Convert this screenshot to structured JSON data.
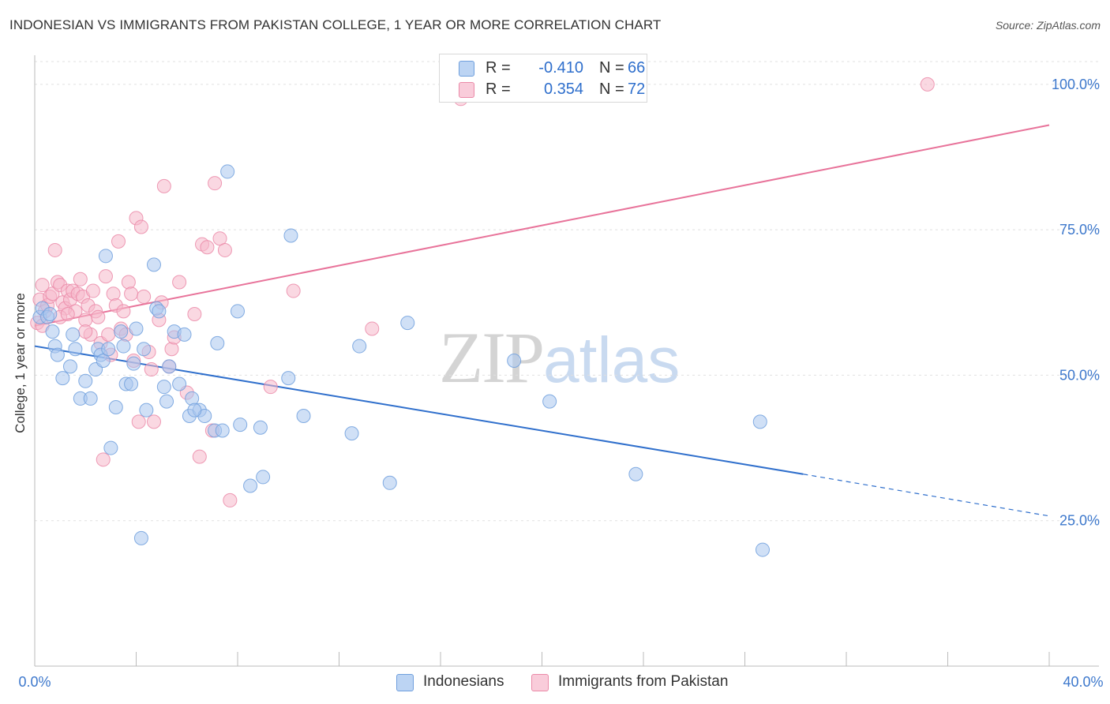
{
  "title": "INDONESIAN VS IMMIGRANTS FROM PAKISTAN COLLEGE, 1 YEAR OR MORE CORRELATION CHART",
  "source": "Source: ZipAtlas.com",
  "watermark": {
    "zip": "ZIP",
    "atlas": "atlas"
  },
  "colors": {
    "blue_fill": "#a9c6ee",
    "blue_stroke": "#6f9fdd",
    "blue_line": "#2f6fcc",
    "pink_fill": "#f5b8cb",
    "pink_stroke": "#eb8aa8",
    "pink_line": "#e8739a",
    "grid": "#e0e0e0",
    "axis_label": "#3d78cc"
  },
  "legend_top": [
    {
      "r_label": "R =",
      "r_value": "-0.410",
      "n_label": "N =",
      "n_value": "66"
    },
    {
      "r_label": "R =",
      "r_value": "0.354",
      "n_label": "N =",
      "n_value": "72"
    }
  ],
  "legend_bottom": [
    "Indonesians",
    "Immigrants from Pakistan"
  ],
  "chart_data": {
    "type": "scatter",
    "title": "INDONESIAN VS IMMIGRANTS FROM PAKISTAN COLLEGE, 1 YEAR OR MORE CORRELATION CHART",
    "xlabel": "",
    "ylabel": "College, 1 year or more",
    "xlim": [
      0,
      40
    ],
    "ylim": [
      0,
      105
    ],
    "x_tick_labels": {
      "left": "0.0%",
      "right": "40.0%"
    },
    "y_ticks": [
      {
        "value": 25,
        "label": "25.0%"
      },
      {
        "value": 50,
        "label": "50.0%"
      },
      {
        "value": 75,
        "label": "75.0%"
      },
      {
        "value": 100,
        "label": "100.0%"
      }
    ],
    "series": [
      {
        "name": "Indonesians",
        "r": -0.41,
        "n": 66,
        "trend": {
          "x0": 0,
          "y0": 55.0,
          "x1": 30.3,
          "y1": 33.0,
          "dash_to_x": 40,
          "dash_to_y": 25.8
        },
        "points": [
          [
            0.2,
            60.0
          ],
          [
            0.3,
            61.5
          ],
          [
            0.5,
            60.0
          ],
          [
            0.6,
            60.5
          ],
          [
            0.7,
            57.5
          ],
          [
            0.8,
            55.0
          ],
          [
            0.9,
            53.5
          ],
          [
            1.1,
            49.5
          ],
          [
            1.4,
            51.5
          ],
          [
            1.5,
            57.0
          ],
          [
            1.8,
            46.0
          ],
          [
            2.0,
            49.0
          ],
          [
            2.2,
            46.0
          ],
          [
            2.4,
            51.0
          ],
          [
            2.5,
            54.5
          ],
          [
            2.6,
            53.5
          ],
          [
            2.7,
            52.5
          ],
          [
            2.9,
            54.5
          ],
          [
            2.8,
            70.5
          ],
          [
            3.0,
            37.5
          ],
          [
            3.2,
            44.5
          ],
          [
            3.4,
            57.5
          ],
          [
            3.5,
            55.0
          ],
          [
            3.6,
            48.5
          ],
          [
            3.8,
            48.5
          ],
          [
            3.9,
            52.0
          ],
          [
            4.0,
            58.0
          ],
          [
            4.2,
            22.0
          ],
          [
            4.3,
            54.5
          ],
          [
            4.4,
            44.0
          ],
          [
            4.7,
            69.0
          ],
          [
            4.8,
            61.5
          ],
          [
            4.9,
            61.0
          ],
          [
            5.1,
            48.0
          ],
          [
            5.2,
            45.5
          ],
          [
            5.3,
            51.5
          ],
          [
            5.5,
            57.5
          ],
          [
            5.7,
            48.5
          ],
          [
            5.9,
            57.0
          ],
          [
            6.1,
            43.0
          ],
          [
            6.2,
            46.0
          ],
          [
            6.5,
            44.0
          ],
          [
            6.7,
            43.0
          ],
          [
            7.1,
            40.5
          ],
          [
            7.4,
            40.5
          ],
          [
            7.2,
            55.5
          ],
          [
            7.6,
            85.0
          ],
          [
            8.0,
            61.0
          ],
          [
            8.1,
            41.5
          ],
          [
            8.5,
            31.0
          ],
          [
            8.9,
            41.0
          ],
          [
            9.0,
            32.5
          ],
          [
            10.0,
            49.5
          ],
          [
            10.1,
            74.0
          ],
          [
            10.6,
            43.0
          ],
          [
            12.5,
            40.0
          ],
          [
            12.8,
            55.0
          ],
          [
            14.0,
            31.5
          ],
          [
            14.7,
            59.0
          ],
          [
            18.9,
            52.5
          ],
          [
            20.3,
            45.5
          ],
          [
            23.7,
            33.0
          ],
          [
            28.6,
            42.0
          ],
          [
            28.7,
            20.0
          ],
          [
            6.3,
            44.0
          ],
          [
            1.6,
            54.5
          ]
        ]
      },
      {
        "name": "Immigrants from Pakistan",
        "r": 0.354,
        "n": 72,
        "trend": {
          "x0": 0,
          "y0": 58.5,
          "x1": 40,
          "y1": 93.0
        },
        "points": [
          [
            0.1,
            59.0
          ],
          [
            0.2,
            63.0
          ],
          [
            0.3,
            65.5
          ],
          [
            0.4,
            61.0
          ],
          [
            0.5,
            62.0
          ],
          [
            0.6,
            63.5
          ],
          [
            0.7,
            64.0
          ],
          [
            0.8,
            71.5
          ],
          [
            0.9,
            66.0
          ],
          [
            1.0,
            65.5
          ],
          [
            1.1,
            62.5
          ],
          [
            1.2,
            61.5
          ],
          [
            1.3,
            64.5
          ],
          [
            1.4,
            63.0
          ],
          [
            1.5,
            64.5
          ],
          [
            1.6,
            61.0
          ],
          [
            1.7,
            64.0
          ],
          [
            1.8,
            66.5
          ],
          [
            1.9,
            63.5
          ],
          [
            2.0,
            59.5
          ],
          [
            2.1,
            62.0
          ],
          [
            2.2,
            57.0
          ],
          [
            2.3,
            64.5
          ],
          [
            2.4,
            61.0
          ],
          [
            2.5,
            60.0
          ],
          [
            2.6,
            55.5
          ],
          [
            2.7,
            35.5
          ],
          [
            2.8,
            67.0
          ],
          [
            2.9,
            57.0
          ],
          [
            3.0,
            53.5
          ],
          [
            3.1,
            64.0
          ],
          [
            3.2,
            62.0
          ],
          [
            3.3,
            73.0
          ],
          [
            3.4,
            58.0
          ],
          [
            3.5,
            61.0
          ],
          [
            3.6,
            57.0
          ],
          [
            3.7,
            66.0
          ],
          [
            3.8,
            64.0
          ],
          [
            3.9,
            52.5
          ],
          [
            4.0,
            77.0
          ],
          [
            4.1,
            42.0
          ],
          [
            4.2,
            75.5
          ],
          [
            4.3,
            63.5
          ],
          [
            4.5,
            54.0
          ],
          [
            4.6,
            51.0
          ],
          [
            4.7,
            42.0
          ],
          [
            4.9,
            59.5
          ],
          [
            5.0,
            62.5
          ],
          [
            5.1,
            82.5
          ],
          [
            5.3,
            51.5
          ],
          [
            5.4,
            54.5
          ],
          [
            5.5,
            56.5
          ],
          [
            5.7,
            66.0
          ],
          [
            6.0,
            47.0
          ],
          [
            6.3,
            60.5
          ],
          [
            6.5,
            36.0
          ],
          [
            6.6,
            72.5
          ],
          [
            6.8,
            72.0
          ],
          [
            7.0,
            40.5
          ],
          [
            7.1,
            83.0
          ],
          [
            7.3,
            73.5
          ],
          [
            7.5,
            71.5
          ],
          [
            7.7,
            28.5
          ],
          [
            9.3,
            48.0
          ],
          [
            10.2,
            64.5
          ],
          [
            13.3,
            58.0
          ],
          [
            16.8,
            97.5
          ],
          [
            35.2,
            100.0
          ],
          [
            0.3,
            58.5
          ],
          [
            1.0,
            60.0
          ],
          [
            1.3,
            60.5
          ],
          [
            2.0,
            57.5
          ]
        ]
      }
    ]
  }
}
